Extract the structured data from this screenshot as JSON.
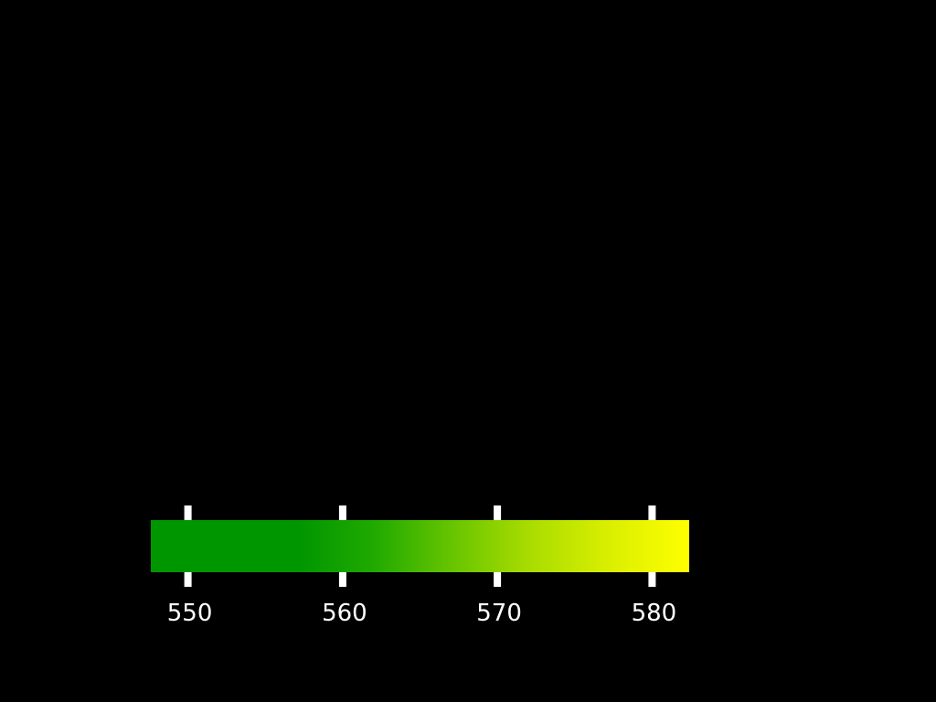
{
  "spectrum_scale": {
    "unit": "",
    "range": [
      547.6,
      582.4
    ],
    "color_stops": [
      {
        "value": 547.6,
        "color": "#009600"
      },
      {
        "value": 557.1,
        "color": "#009600"
      },
      {
        "value": 562.0,
        "color": "#20aa00"
      },
      {
        "value": 567.0,
        "color": "#66c400"
      },
      {
        "value": 572.0,
        "color": "#a8dc00"
      },
      {
        "value": 577.0,
        "color": "#d8ee00"
      },
      {
        "value": 582.4,
        "color": "#ffff00"
      }
    ],
    "ticks": [
      {
        "value": 550,
        "label": "550"
      },
      {
        "value": 560,
        "label": "560"
      },
      {
        "value": 570,
        "label": "570"
      },
      {
        "value": 580,
        "label": "580"
      }
    ],
    "tick_color": "#ffffff",
    "background_color": "#000000"
  }
}
